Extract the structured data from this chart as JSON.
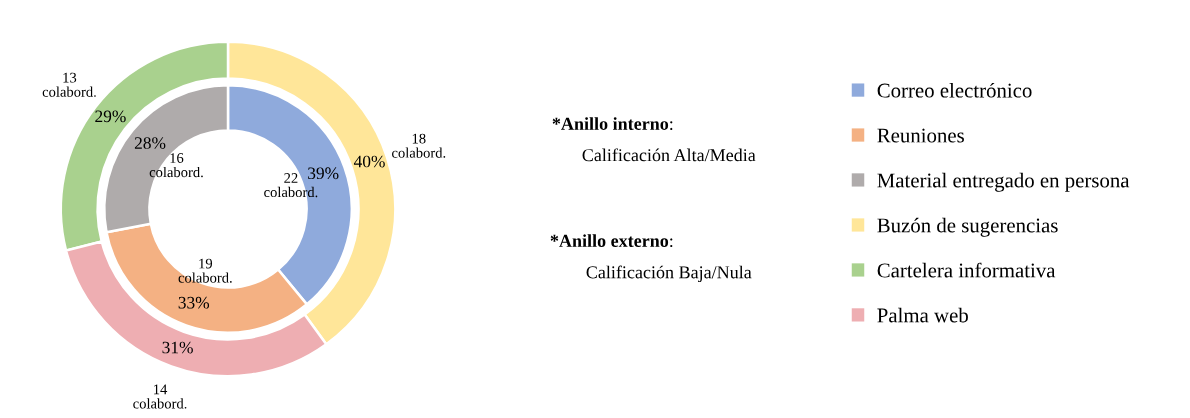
{
  "chart_data": {
    "type": "donut",
    "categories": [
      "Correo electrónico",
      "Reuniones",
      "Material entregado en persona",
      "Buzón de sugerencias",
      "Cartelera informativa",
      "Palma web"
    ],
    "colors": [
      "#8faadc",
      "#f4b183",
      "#afabab",
      "#ffe699",
      "#a9d18e",
      "#eeaeb2"
    ],
    "series": [
      {
        "values": [
          39,
          33,
          28,
          null,
          null,
          null
        ],
        "value_labels": [
          "39%",
          "33%",
          "28%",
          null,
          null,
          null
        ]
      },
      {
        "values": [
          null,
          null,
          null,
          40,
          29,
          31
        ],
        "value_labels": [
          null,
          null,
          null,
          "40%",
          "29%",
          "31%"
        ]
      }
    ],
    "legend": "right",
    "annotations": [
      {
        "text": "22\ncolabord.",
        "x": "Correo electrónico"
      },
      {
        "text": "19\ncolabord.",
        "x": "Reuniones"
      },
      {
        "text": "16\ncolabord.",
        "x": "Material entregado en persona"
      },
      {
        "text": "18\ncolabord.",
        "x": "Buzón de sugerencias"
      },
      {
        "text": "13\ncolabord.",
        "x": "Cartelera informativa"
      },
      {
        "text": "14\ncolabord.",
        "x": "Palma web"
      },
      "*Anillo interno: Calificación Alta/Media",
      "*Anillo externo: Calificación Baja/Nula"
    ]
  }
}
